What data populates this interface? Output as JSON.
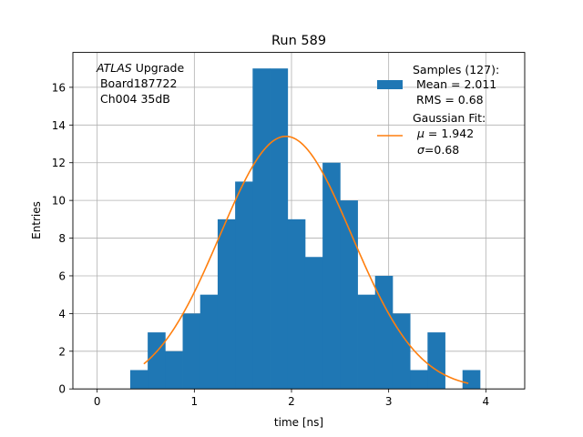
{
  "chart_data": {
    "type": "bar",
    "title": "Run 589",
    "xlabel": "time [ns]",
    "ylabel": "Entries",
    "xlim": [
      -0.25,
      4.4
    ],
    "ylim": [
      0,
      17.85
    ],
    "xticks": [
      0,
      1,
      2,
      3,
      4
    ],
    "yticks": [
      0,
      2,
      4,
      6,
      8,
      10,
      12,
      14,
      16
    ],
    "grid": true,
    "legend_position": "top-right",
    "bin_width": 0.18,
    "bin_start": 0.34,
    "bins": [
      {
        "x0": 0.34,
        "x1": 0.52,
        "count": 1
      },
      {
        "x0": 0.52,
        "x1": 0.7,
        "count": 3
      },
      {
        "x0": 0.7,
        "x1": 0.88,
        "count": 2
      },
      {
        "x0": 0.88,
        "x1": 1.06,
        "count": 4
      },
      {
        "x0": 1.06,
        "x1": 1.24,
        "count": 5
      },
      {
        "x0": 1.24,
        "x1": 1.42,
        "count": 9
      },
      {
        "x0": 1.42,
        "x1": 1.6,
        "count": 11
      },
      {
        "x0": 1.6,
        "x1": 1.78,
        "count": 17
      },
      {
        "x0": 1.78,
        "x1": 1.96,
        "count": 17
      },
      {
        "x0": 1.96,
        "x1": 2.14,
        "count": 9
      },
      {
        "x0": 2.14,
        "x1": 2.32,
        "count": 7
      },
      {
        "x0": 2.32,
        "x1": 2.5,
        "count": 12
      },
      {
        "x0": 2.5,
        "x1": 2.68,
        "count": 10
      },
      {
        "x0": 2.68,
        "x1": 2.86,
        "count": 5
      },
      {
        "x0": 2.86,
        "x1": 3.04,
        "count": 6
      },
      {
        "x0": 3.04,
        "x1": 3.22,
        "count": 4
      },
      {
        "x0": 3.22,
        "x1": 3.4,
        "count": 1
      },
      {
        "x0": 3.4,
        "x1": 3.58,
        "count": 3
      },
      {
        "x0": 3.58,
        "x1": 3.76,
        "count": 0
      },
      {
        "x0": 3.76,
        "x1": 3.94,
        "count": 1
      }
    ],
    "fit": {
      "type": "gaussian",
      "amplitude": 13.4,
      "mu": 1.942,
      "sigma": 0.68,
      "x_range": [
        0.48,
        3.82
      ]
    },
    "colors": {
      "histogram": "#1f77b4",
      "fit": "#ff7f0e",
      "grid": "#b0b0b0"
    },
    "annotation": [
      "ATLAS",
      " Upgrade",
      " Board187722",
      " Ch004 35dB"
    ],
    "legend": {
      "samples_title": "Samples (127):",
      "samples_mean": " Mean = 2.011",
      "samples_rms": " RMS = 0.68",
      "fit_title": "Gaussian Fit:",
      "fit_mu_symbol": "μ",
      "fit_mu_value": " = 1.942",
      "fit_sigma_symbol": "σ",
      "fit_sigma_value": "=0.68"
    }
  }
}
